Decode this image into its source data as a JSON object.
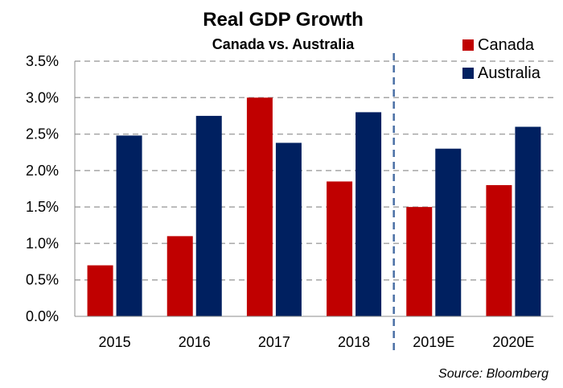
{
  "chart_data": {
    "type": "bar",
    "title": "Real GDP Growth",
    "subtitle": "Canada vs. Australia",
    "categories": [
      "2015",
      "2016",
      "2017",
      "2018",
      "2019E",
      "2020E"
    ],
    "series": [
      {
        "name": "Canada",
        "values": [
          0.7,
          1.1,
          3.0,
          1.85,
          1.5,
          1.8
        ],
        "color": "#c00000"
      },
      {
        "name": "Australia",
        "values": [
          2.48,
          2.75,
          2.38,
          2.8,
          2.3,
          2.6
        ],
        "color": "#002060"
      }
    ],
    "ylim": [
      0,
      3.5
    ],
    "yticks": [
      "0.0%",
      "0.5%",
      "1.0%",
      "1.5%",
      "2.0%",
      "2.5%",
      "3.0%",
      "3.5%"
    ],
    "grid": true,
    "legend": "top-right",
    "source": "Source: Bloomberg"
  }
}
